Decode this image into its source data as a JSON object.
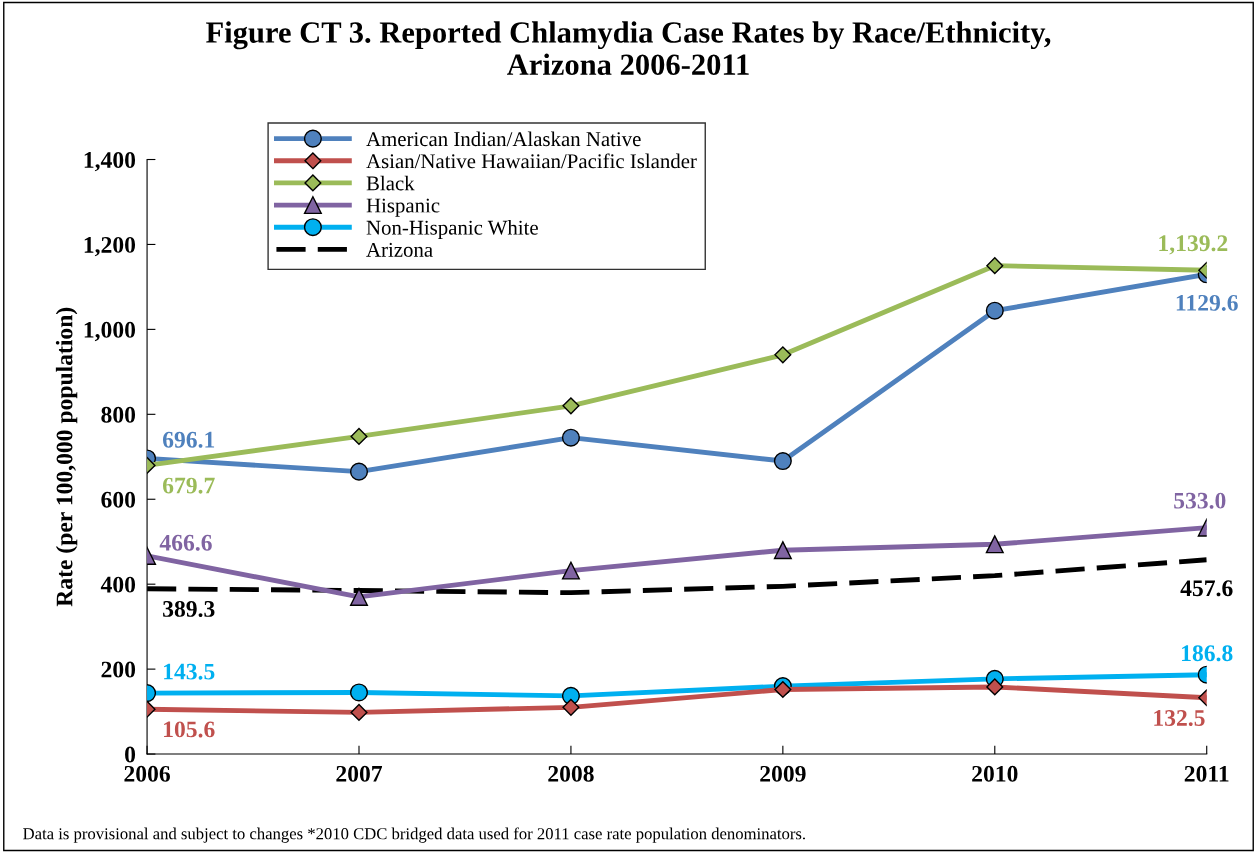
{
  "chart_data": {
    "type": "line",
    "title": "Figure CT 3. Reported Chlamydia Case Rates by Race/Ethnicity,\nArizona 2006-2011",
    "ylabel": "Rate (per 100,000 population)",
    "x": [
      2006,
      2007,
      2008,
      2009,
      2010,
      2011
    ],
    "xlim": [
      2006,
      2011
    ],
    "xticks": [
      2006,
      2007,
      2008,
      2009,
      2010,
      2011
    ],
    "ylim": [
      0,
      1400
    ],
    "yticks": [
      {
        "value": 0,
        "label": "0"
      },
      {
        "value": 200,
        "label": "200"
      },
      {
        "value": 400,
        "label": "400"
      },
      {
        "value": 600,
        "label": "600"
      },
      {
        "value": 800,
        "label": "800"
      },
      {
        "value": 1000,
        "label": "1,000"
      },
      {
        "value": 1200,
        "label": "1,200"
      },
      {
        "value": 1400,
        "label": "1,400"
      }
    ],
    "grid": false,
    "legend": "top left",
    "series": [
      {
        "name": "American Indian/Alaskan Native",
        "color": "#4f81bd",
        "marker": "circle",
        "values": [
          696.1,
          665,
          745,
          690,
          1044,
          1129.6
        ],
        "value_labels": [
          "696.1",
          null,
          null,
          null,
          null,
          "1129.6"
        ]
      },
      {
        "name": "Asian/Native Hawaiian/Pacific Islander",
        "color": "#c0504d",
        "marker": "diamond",
        "values": [
          105.6,
          98,
          110,
          152,
          158,
          132.5
        ],
        "value_labels": [
          "105.6",
          null,
          null,
          null,
          null,
          "132.5"
        ]
      },
      {
        "name": "Black",
        "color": "#9bbb59",
        "marker": "diamond",
        "values": [
          679.7,
          748,
          820,
          940,
          1150,
          1139.2
        ],
        "value_labels": [
          "679.7",
          null,
          null,
          null,
          null,
          "1,139.2"
        ]
      },
      {
        "name": "Hispanic",
        "color": "#8064a2",
        "marker": "triangle",
        "values": [
          466.6,
          370,
          432,
          480,
          494,
          533.0
        ],
        "value_labels": [
          "466.6",
          null,
          null,
          null,
          null,
          "533.0"
        ]
      },
      {
        "name": "Non-Hispanic White",
        "color": "#00b0f0",
        "marker": "circle",
        "values": [
          143.5,
          145,
          137,
          160,
          177,
          186.8
        ],
        "value_labels": [
          "143.5",
          null,
          null,
          null,
          null,
          "186.8"
        ]
      },
      {
        "name": "Arizona",
        "color": "#000000",
        "marker": "none",
        "line_style": "dashed",
        "values": [
          389.3,
          385,
          380,
          395,
          420,
          457.6
        ],
        "value_labels": [
          "389.3",
          null,
          null,
          null,
          null,
          "457.6"
        ]
      }
    ],
    "annotations": [
      "Data is provisional and subject to changes *2010 CDC bridged data used for 2011 case rate population denominators."
    ]
  }
}
